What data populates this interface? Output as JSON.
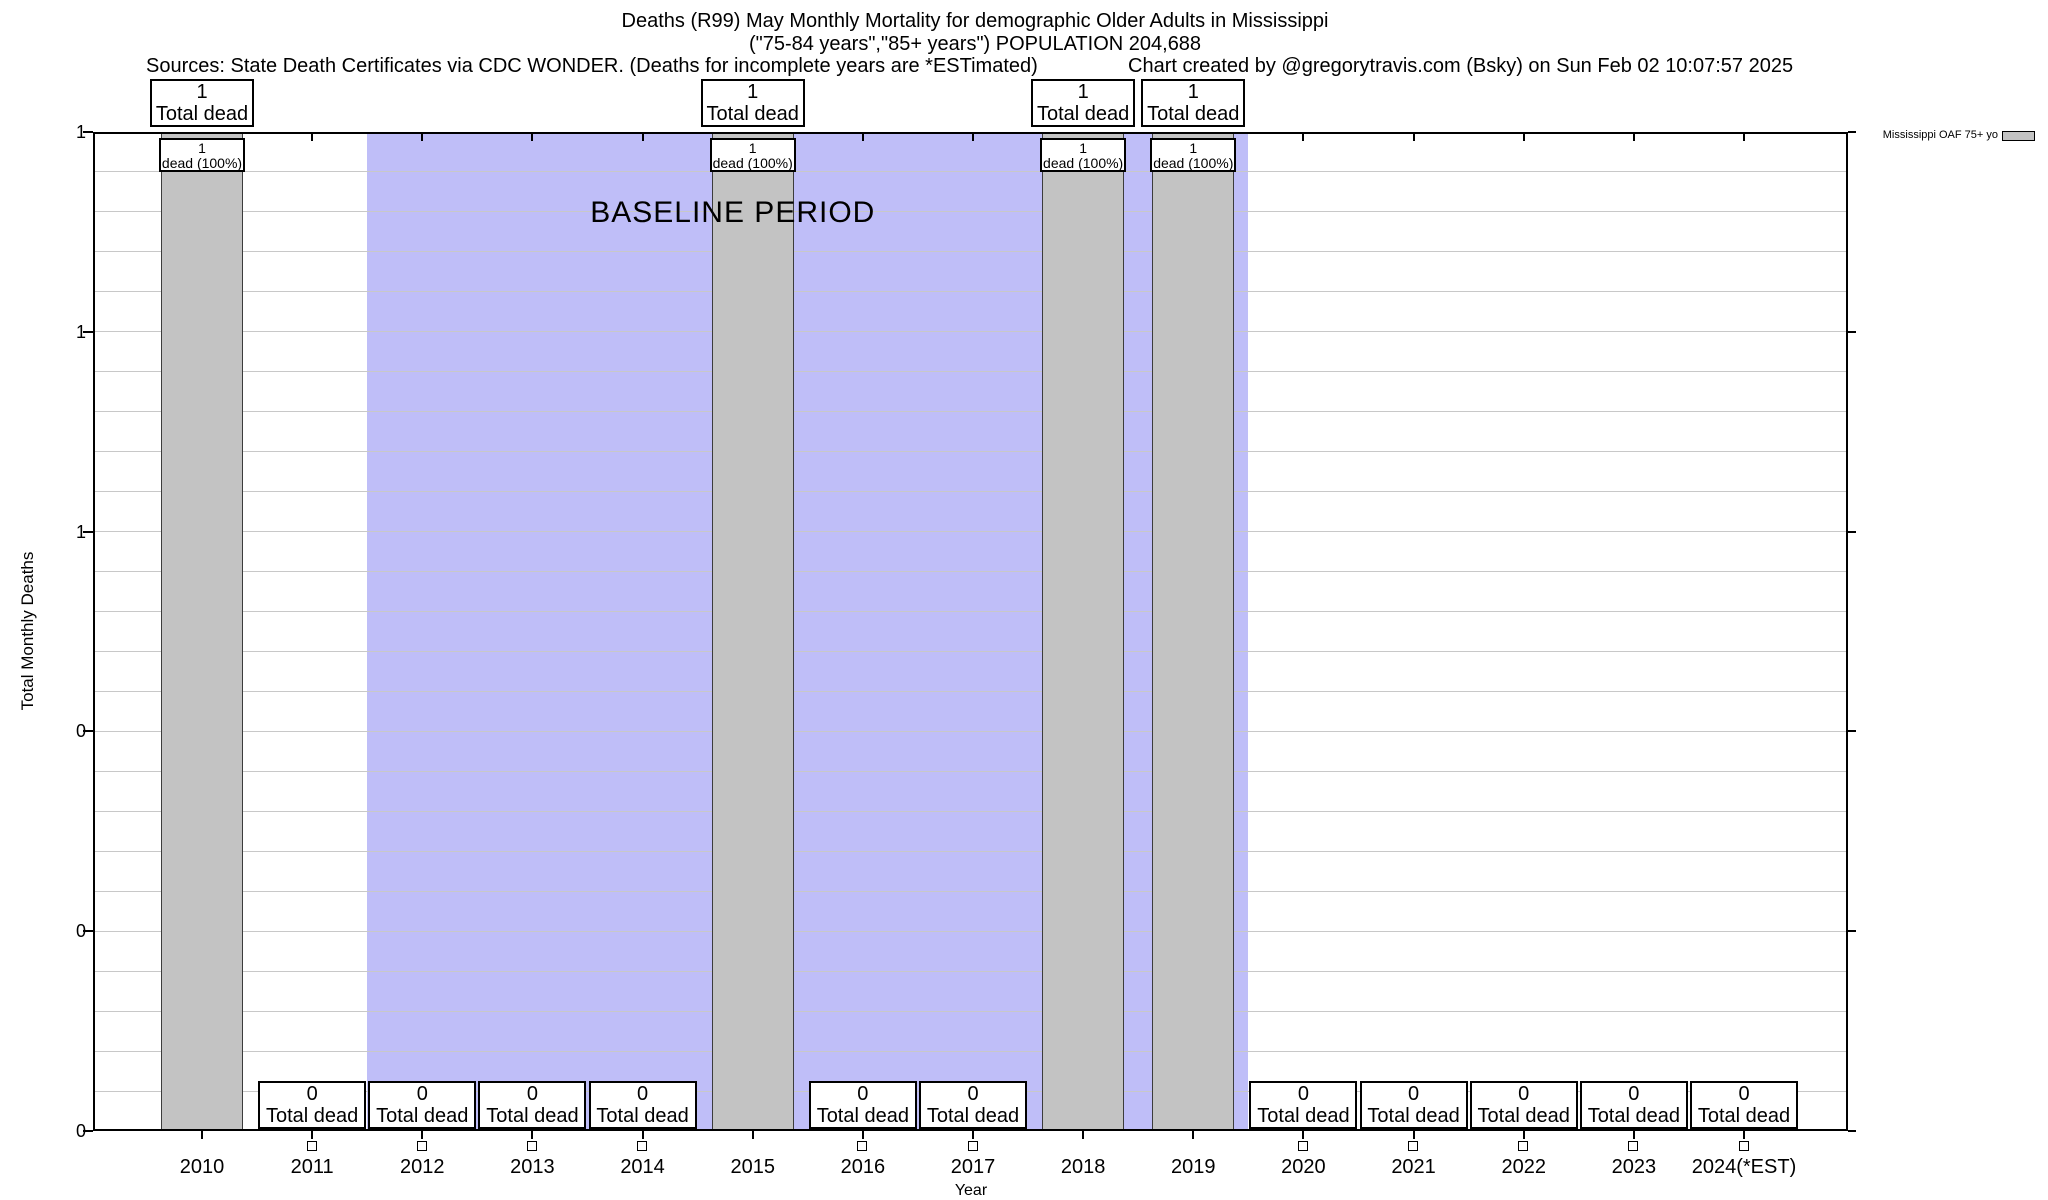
{
  "chart_data": {
    "type": "bar",
    "title": "Deaths (R99) May Monthly Mortality for demographic Older Adults in Mississippi",
    "subtitle": "(\"75-84 years\",\"85+ years\") POPULATION 204,688",
    "source_note": "Sources: State Death Certificates via CDC WONDER. (Deaths for incomplete years are *ESTimated)",
    "credit_note": "Chart created by @gregorytravis.com (Bsky) on Sun Feb 02 10:07:57 2025",
    "xlabel": "Year",
    "ylabel": "Total Monthly Deaths",
    "ylim": [
      0,
      1
    ],
    "grid": "horizontal-only",
    "ytick_values": [
      1.0,
      0.8,
      0.6,
      0.4,
      0.2,
      0.0
    ],
    "ytick_labels": [
      "1",
      "1",
      "1",
      "0",
      "0",
      "0"
    ],
    "minor_y_step": 0.04,
    "legend": {
      "label": "Mississippi OAF 75+ yo",
      "position": "outside-top-right"
    },
    "baseline_region": {
      "label": "BASELINE PERIOD",
      "from_year": 2011.5,
      "to_year": 2019.5
    },
    "categories": [
      "2010",
      "2011",
      "2012",
      "2013",
      "2014",
      "2015",
      "2016",
      "2017",
      "2018",
      "2019",
      "2020",
      "2021",
      "2022",
      "2023",
      "2024(*EST)"
    ],
    "values": [
      1,
      0,
      0,
      0,
      0,
      1,
      0,
      0,
      1,
      1,
      0,
      0,
      0,
      0,
      0
    ],
    "years": [
      {
        "label": "2010",
        "value": 1,
        "top_box": [
          "1",
          "Total dead"
        ],
        "inner_box": [
          "1",
          "dead (100%)"
        ]
      },
      {
        "label": "2011",
        "value": 0,
        "zero_box": [
          "0",
          "Total dead"
        ]
      },
      {
        "label": "2012",
        "value": 0,
        "zero_box": [
          "0",
          "Total dead"
        ]
      },
      {
        "label": "2013",
        "value": 0,
        "zero_box": [
          "0",
          "Total dead"
        ]
      },
      {
        "label": "2014",
        "value": 0,
        "zero_box": [
          "0",
          "Total dead"
        ]
      },
      {
        "label": "2015",
        "value": 1,
        "top_box": [
          "1",
          "Total dead"
        ],
        "inner_box": [
          "1",
          "dead (100%)"
        ]
      },
      {
        "label": "2016",
        "value": 0,
        "zero_box": [
          "0",
          "Total dead"
        ]
      },
      {
        "label": "2017",
        "value": 0,
        "zero_box": [
          "0",
          "Total dead"
        ]
      },
      {
        "label": "2018",
        "value": 1,
        "top_box": [
          "1",
          "Total dead"
        ],
        "inner_box": [
          "1",
          "dead (100%)"
        ]
      },
      {
        "label": "2019",
        "value": 1,
        "top_box": [
          "1",
          "Total dead"
        ],
        "inner_box": [
          "1",
          "dead (100%)"
        ]
      },
      {
        "label": "2020",
        "value": 0,
        "zero_box": [
          "0",
          "Total dead"
        ]
      },
      {
        "label": "2021",
        "value": 0,
        "zero_box": [
          "0",
          "Total dead"
        ]
      },
      {
        "label": "2022",
        "value": 0,
        "zero_box": [
          "0",
          "Total dead"
        ]
      },
      {
        "label": "2023",
        "value": 0,
        "zero_box": [
          "0",
          "Total dead"
        ]
      },
      {
        "label": "2024(*EST)",
        "value": 0,
        "zero_box": [
          "0",
          "Total dead"
        ]
      }
    ],
    "colors": {
      "bar_fill": "#c3c3c3",
      "bar_border": "#3c3c3c",
      "baseline_fill": "#bfbef8",
      "gridline": "#c8c8c8",
      "annotation_box_bg": "#ffffff",
      "text": "#000000"
    }
  }
}
